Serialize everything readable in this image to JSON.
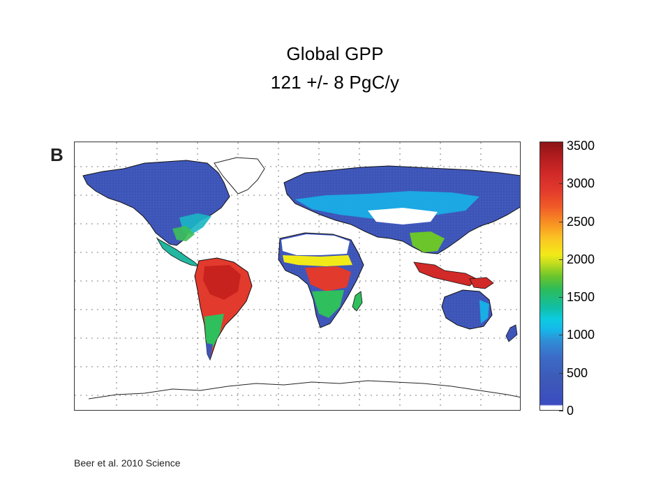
{
  "title": {
    "line1": "Global GPP",
    "line2": "121 +/- 8 PgC/y"
  },
  "panel_label": "B",
  "colorbar": {
    "ticks": [
      "3500",
      "3000",
      "2500",
      "2000",
      "1500",
      "1000",
      "500",
      "0"
    ],
    "range": [
      0,
      3500
    ],
    "colors": {
      "low": "#3b4cc0",
      "mid_low": "#15b7ea",
      "mid": "#6cc52a",
      "mid_high": "#f2ea18",
      "high": "#e23a2c",
      "max": "#8e1416",
      "zero": "#ffffff"
    }
  },
  "source": "Beer et al. 2010 Science"
}
